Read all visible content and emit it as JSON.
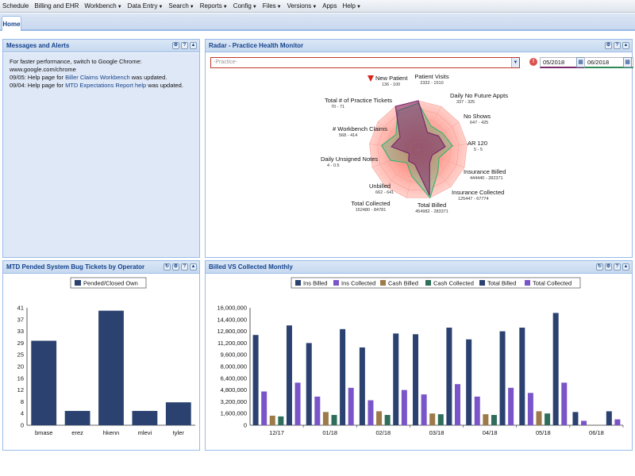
{
  "menu": [
    {
      "label": "Schedule",
      "has_caret": false
    },
    {
      "label": "Billing and EHR",
      "has_caret": false
    },
    {
      "label": "Workbench",
      "has_caret": true
    },
    {
      "label": "Data Entry",
      "has_caret": true
    },
    {
      "label": "Search",
      "has_caret": true
    },
    {
      "label": "Reports",
      "has_caret": true
    },
    {
      "label": "Config",
      "has_caret": true
    },
    {
      "label": "Files",
      "has_caret": true
    },
    {
      "label": "Versions",
      "has_caret": true
    },
    {
      "label": "Apps",
      "has_caret": false
    },
    {
      "label": "Help",
      "has_caret": true
    }
  ],
  "tabs": {
    "home": "Home"
  },
  "messages_panel": {
    "title": "Messages and Alerts",
    "line1": "For faster performance, switch to Google Chrome: www.google.com/chrome",
    "line2_prefix": "09/05: Help page for ",
    "line2_link": "Biller Claims Workbench",
    "line2_suffix": " was updated.",
    "line3_prefix": "09/04: Help page for ",
    "line3_link": "MTD Expectations Report help",
    "line3_suffix": " was updated."
  },
  "radar_panel": {
    "title": "Radar - Practice Health Monitor",
    "practice_placeholder": "-Practice-",
    "start_date": "05/2018",
    "end_date": "06/2018",
    "axes": [
      {
        "label": "Patient Visits",
        "value": "2332 - 1510"
      },
      {
        "label": "Daily No Future Appts",
        "value": "337 - 325"
      },
      {
        "label": "No Shows",
        "value": "647 - 425"
      },
      {
        "label": "AR 120",
        "value": "5 - 5"
      },
      {
        "label": "Insurance Billed",
        "value": "444440 - 282371"
      },
      {
        "label": "Insurance Collected",
        "value": "125447 - 67774"
      },
      {
        "label": "Total Billed",
        "value": "454982 - 283371"
      },
      {
        "label": "Total Collected",
        "value": "152480 - 84781"
      },
      {
        "label": "Unbilled",
        "value": "662 - 641"
      },
      {
        "label": "Daily Unsigned Notes",
        "value": "4 - 0.5"
      },
      {
        "label": "# Workbench Claims",
        "value": "568 - 414"
      },
      {
        "label": "Total # of Practice Tickets",
        "value": "70 - 71"
      },
      {
        "label": "New Patient",
        "value": "136 - 100"
      }
    ],
    "colors": {
      "current": "#7b2a6b",
      "prior": "#3cb371"
    }
  },
  "bug_panel": {
    "title": "MTD Pended System Bug Tickets by Operator"
  },
  "billed_panel": {
    "title": "Billed VS Collected Monthly"
  },
  "chart_data": [
    {
      "type": "bar",
      "legend": [
        "Pended/Closed Own"
      ],
      "categories": [
        "bmase",
        "erez",
        "hkenn",
        "mlevi",
        "tyler"
      ],
      "series": [
        {
          "name": "Pended/Closed Own",
          "values": [
            29.5,
            5,
            40,
            5,
            8
          ]
        }
      ],
      "yticks": [
        "0",
        "4",
        "8",
        "12",
        "16",
        "20",
        "25",
        "29",
        "33",
        "37",
        "41"
      ],
      "ylim": [
        0,
        41
      ],
      "colors": [
        "#2b4170"
      ]
    },
    {
      "type": "bar",
      "categories": [
        "12/17",
        "01/18",
        "02/18",
        "03/18",
        "04/18",
        "05/18",
        "06/18"
      ],
      "series": [
        {
          "name": "Ins Billed",
          "color": "#2b4170",
          "values": [
            12300000,
            11200000,
            10600000,
            12400000,
            11700000,
            13300000,
            1800000
          ]
        },
        {
          "name": "Ins Collected",
          "color": "#7a55c9",
          "values": [
            4600000,
            3900000,
            3400000,
            4200000,
            3900000,
            4400000,
            600000
          ]
        },
        {
          "name": "Cash Billed",
          "color": "#9c7a4a",
          "values": [
            1300000,
            1800000,
            1900000,
            1600000,
            1500000,
            1900000,
            0
          ]
        },
        {
          "name": "Cash Collected",
          "color": "#2e6e5a",
          "values": [
            1200000,
            1400000,
            1400000,
            1500000,
            1400000,
            1600000,
            0
          ]
        },
        {
          "name": "Total Billed",
          "color": "#2b4170",
          "values": [
            13600000,
            13100000,
            12500000,
            13300000,
            12800000,
            15300000,
            1900000
          ]
        },
        {
          "name": "Total Collected",
          "color": "#7a55c9",
          "values": [
            5800000,
            5100000,
            4800000,
            5600000,
            5100000,
            5800000,
            800000
          ]
        }
      ],
      "yticks": [
        "0",
        "1,600,000",
        "3,200,000",
        "4,800,000",
        "6,400,000",
        "8,000,000",
        "9,600,000",
        "11,200,000",
        "12,800,000",
        "14,400,000",
        "16,000,000"
      ],
      "ylim": [
        0,
        16000000
      ]
    }
  ]
}
